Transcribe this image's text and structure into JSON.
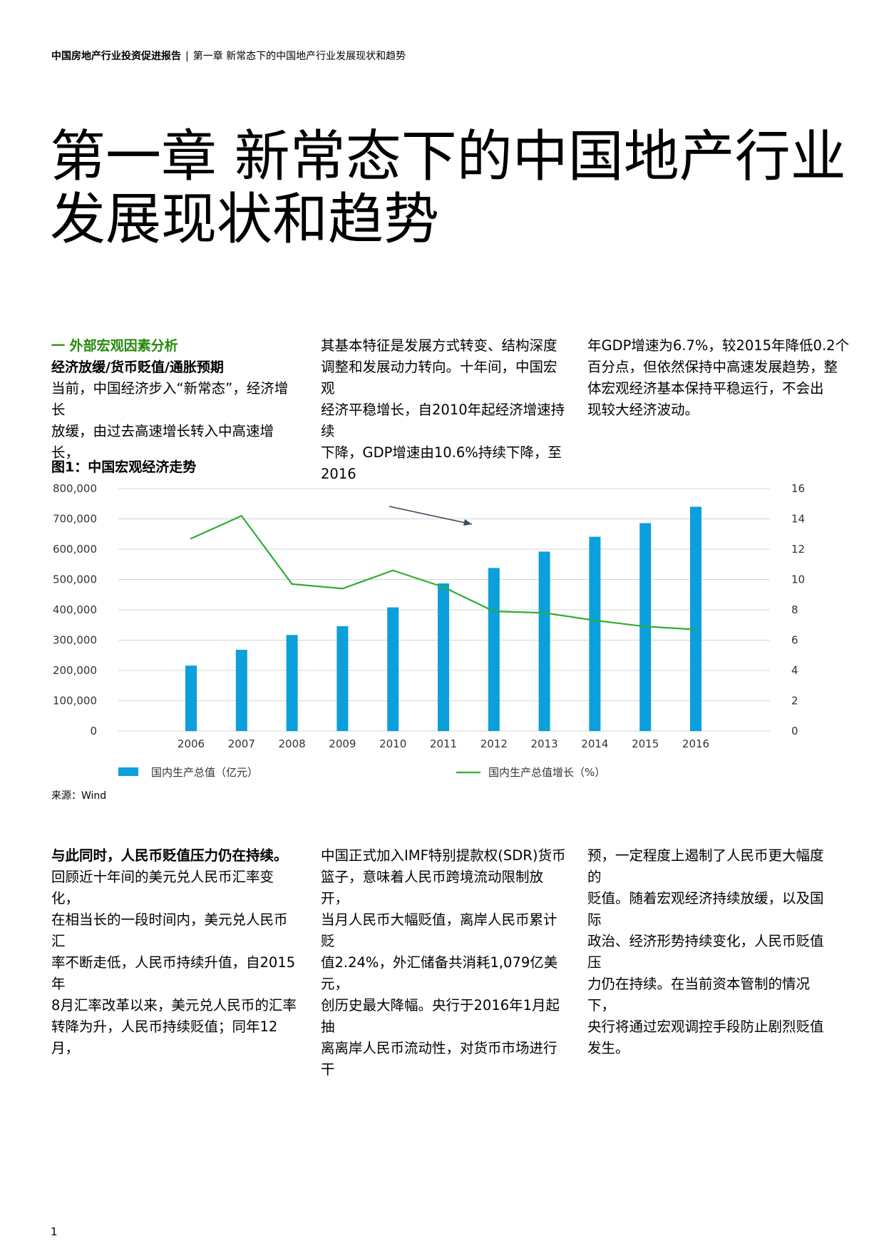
{
  "header": {
    "report_title": "中国房地产行业投资促进报告",
    "separator": "|",
    "chapter_ref": "第一章 新常态下的中国地产行业发展现状和趋势"
  },
  "chapter_title": {
    "line1": "第一章 新常态下的中国地产行业",
    "line2": "发展现状和趋势"
  },
  "section1": {
    "label": "一 外部宏观因素分析",
    "subhead": "经济放缓/货币贬值/通胀预期",
    "col1": [
      "当前，中国经济步入“新常态”，经济增长",
      "放缓，由过去高速增长转入中高速增长，"
    ],
    "col2": [
      "其基本特征是发展方式转变、结构深度",
      "调整和发展动力转向。十年间，中国宏观",
      "经济平稳增长，自2010年起经济增速持续",
      "下降，GDP增速由10.6%持续下降，至2016"
    ],
    "col3": [
      "年GDP增速为6.7%，较2015年降低0.2个",
      "百分点，但依然保持中高速发展趋势，整",
      "体宏观经济基本保持平稳运行，不会出",
      "现较大经济波动。"
    ]
  },
  "figure": {
    "title": "图1：中国宏观经济走势",
    "source": "来源：Wind"
  },
  "chart_data": {
    "type": "bar",
    "title": "图1：中国宏观经济走势",
    "categories": [
      "2006",
      "2007",
      "2008",
      "2009",
      "2010",
      "2011",
      "2012",
      "2013",
      "2014",
      "2015",
      "2016"
    ],
    "series": [
      {
        "name": "国内生产总值（亿元）",
        "type": "bar",
        "axis": "left",
        "color": "#0b9fdc",
        "values": [
          216000,
          268000,
          317000,
          346000,
          408000,
          487000,
          538000,
          592000,
          641000,
          686000,
          740000
        ]
      },
      {
        "name": "国内生产总值增长（%）",
        "type": "line",
        "axis": "right",
        "color": "#2fae35",
        "values": [
          12.7,
          14.2,
          9.7,
          9.4,
          10.6,
          9.5,
          7.9,
          7.8,
          7.3,
          6.9,
          6.7
        ]
      }
    ],
    "y_left": {
      "min": 0,
      "max": 800000,
      "ticks": [
        "0",
        "100,000",
        "200,000",
        "300,000",
        "400,000",
        "500,000",
        "600,000",
        "700,000",
        "800,000"
      ]
    },
    "y_right": {
      "min": 0,
      "max": 16,
      "ticks": [
        "0",
        "2",
        "4",
        "6",
        "8",
        "10",
        "12",
        "14",
        "16"
      ]
    },
    "grid": true,
    "legend": "bottom",
    "annotation": "arrow pointing down-right between 2010 and 2012 above the bars"
  },
  "section2": {
    "col1_lead": "与此同时，人民币贬值压力仍在持续。",
    "col1": [
      "回顾近十年间的美元兑人民币汇率变化，",
      "在相当长的一段时间内，美元兑人民币汇",
      "率不断走低，人民币持续升值，自2015年",
      "8月汇率改革以来，美元兑人民币的汇率",
      "转降为升，人民币持续贬值；同年12月，"
    ],
    "col2": [
      "中国正式加入IMF特别提款权(SDR)货币",
      "篮子，意味着人民币跨境流动限制放开，",
      "当月人民币大幅贬值，离岸人民币累计贬",
      "值2.24%，外汇储备共消耗1,079亿美元，",
      "创历史最大降幅。央行于2016年1月起抽",
      "离离岸人民币流动性，对货币市场进行干"
    ],
    "col3": [
      "预，一定程度上遏制了人民币更大幅度的",
      "贬值。随着宏观经济持续放缓，以及国际",
      "政治、经济形势持续变化，人民币贬值压",
      "力仍在持续。在当前资本管制的情况下，",
      "央行将通过宏观调控手段防止剧烈贬值",
      "发生。"
    ]
  },
  "page_number": "1"
}
